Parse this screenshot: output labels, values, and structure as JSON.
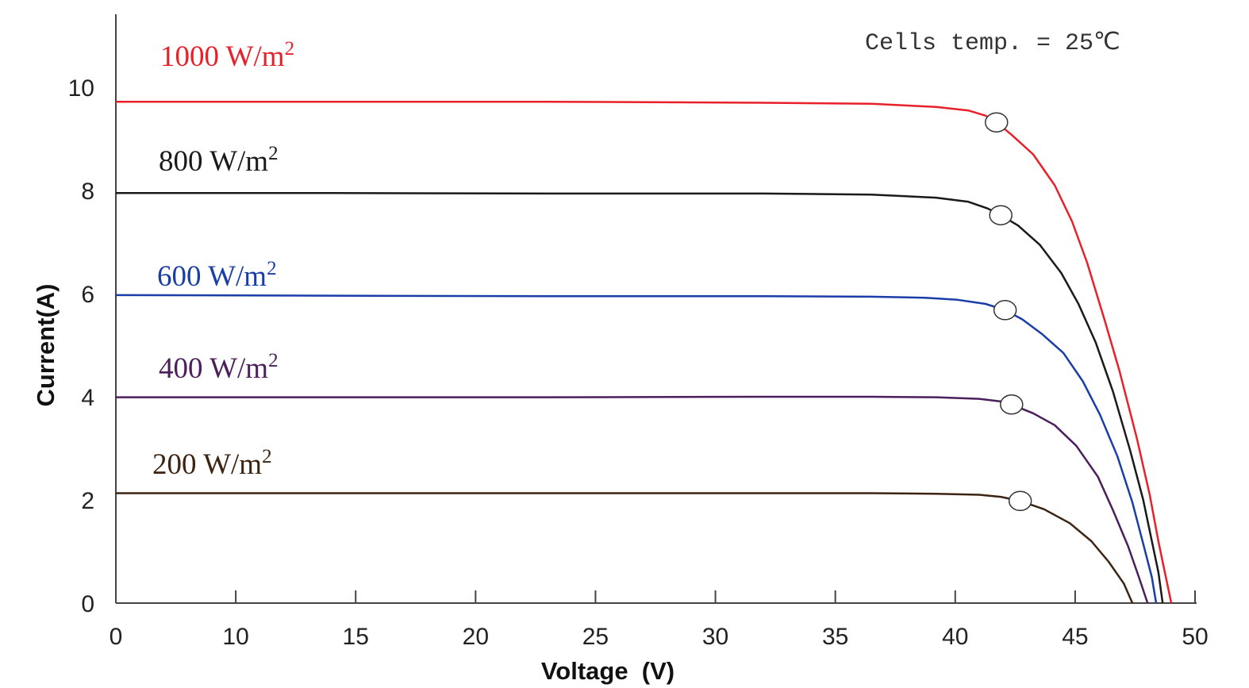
{
  "chart_data": {
    "type": "line",
    "title": "",
    "annotation": "Cells temp. = 25℃",
    "xlabel": "Voltage  (V)",
    "ylabel": "Current(A)",
    "xlim": [
      0,
      50
    ],
    "ylim": [
      0,
      11
    ],
    "x_ticks": [
      0,
      10,
      15,
      20,
      25,
      30,
      35,
      40,
      45,
      50
    ],
    "y_ticks": [
      0,
      2,
      4,
      6,
      8,
      10
    ],
    "grid": false,
    "series": [
      {
        "name": "1000 W/m²",
        "label_main": "1000 W/m",
        "label_sup": "2",
        "color": "#e8202a",
        "points": [
          [
            0,
            9.72
          ],
          [
            10,
            9.72
          ],
          [
            20,
            9.72
          ],
          [
            30,
            9.7
          ],
          [
            35,
            9.68
          ],
          [
            38,
            9.62
          ],
          [
            39.5,
            9.55
          ],
          [
            40.3,
            9.45
          ],
          [
            40.8,
            9.32
          ],
          [
            41.5,
            9.08
          ],
          [
            42.5,
            8.7
          ],
          [
            43.5,
            8.1
          ],
          [
            44.3,
            7.4
          ],
          [
            45,
            6.6
          ],
          [
            45.8,
            5.5
          ],
          [
            46.5,
            4.5
          ],
          [
            47.3,
            3.2
          ],
          [
            47.9,
            2.1
          ],
          [
            48.3,
            1.2
          ],
          [
            48.6,
            0.6
          ],
          [
            48.9,
            0.0
          ]
        ],
        "mpp": [
          40.8,
          9.32
        ]
      },
      {
        "name": "800 W/m²",
        "label_main": "800 W/m",
        "label_sup": "2",
        "color": "#1a1a1a",
        "points": [
          [
            0,
            7.95
          ],
          [
            10,
            7.95
          ],
          [
            20,
            7.94
          ],
          [
            30,
            7.94
          ],
          [
            35,
            7.92
          ],
          [
            38,
            7.86
          ],
          [
            39.5,
            7.78
          ],
          [
            40.4,
            7.65
          ],
          [
            41,
            7.52
          ],
          [
            41.8,
            7.32
          ],
          [
            42.8,
            6.95
          ],
          [
            43.8,
            6.4
          ],
          [
            44.6,
            5.8
          ],
          [
            45.4,
            5.05
          ],
          [
            46.2,
            4.1
          ],
          [
            47,
            2.95
          ],
          [
            47.6,
            2.0
          ],
          [
            48,
            1.2
          ],
          [
            48.3,
            0.6
          ],
          [
            48.5,
            0.0
          ]
        ],
        "mpp": [
          41.0,
          7.52
        ]
      },
      {
        "name": "600 W/m²",
        "label_main": "600 W/m",
        "label_sup": "2",
        "color": "#1a3ea8",
        "points": [
          [
            0,
            5.97
          ],
          [
            10,
            5.96
          ],
          [
            20,
            5.95
          ],
          [
            30,
            5.95
          ],
          [
            35,
            5.94
          ],
          [
            37.5,
            5.92
          ],
          [
            39,
            5.88
          ],
          [
            40.3,
            5.8
          ],
          [
            41.2,
            5.68
          ],
          [
            42,
            5.5
          ],
          [
            42.9,
            5.22
          ],
          [
            43.9,
            4.85
          ],
          [
            44.8,
            4.3
          ],
          [
            45.6,
            3.65
          ],
          [
            46.4,
            2.85
          ],
          [
            47.1,
            1.95
          ],
          [
            47.6,
            1.15
          ],
          [
            48,
            0.5
          ],
          [
            48.2,
            0.0
          ]
        ],
        "mpp": [
          41.2,
          5.68
        ]
      },
      {
        "name": "400 W/m²",
        "label_main": "400 W/m",
        "label_sup": "2",
        "color": "#4b1e5c",
        "points": [
          [
            0,
            3.99
          ],
          [
            10,
            3.99
          ],
          [
            20,
            3.99
          ],
          [
            30,
            4.0
          ],
          [
            35,
            4.0
          ],
          [
            38,
            3.99
          ],
          [
            40,
            3.96
          ],
          [
            41,
            3.91
          ],
          [
            41.5,
            3.85
          ],
          [
            42.5,
            3.68
          ],
          [
            43.5,
            3.45
          ],
          [
            44.5,
            3.05
          ],
          [
            45.5,
            2.45
          ],
          [
            46.2,
            1.8
          ],
          [
            46.9,
            1.1
          ],
          [
            47.4,
            0.5
          ],
          [
            47.8,
            0.0
          ]
        ],
        "mpp": [
          41.5,
          3.85
        ]
      },
      {
        "name": "200 W/m²",
        "label_main": "200 W/m",
        "label_sup": "2",
        "color": "#3d2412",
        "points": [
          [
            0,
            2.13
          ],
          [
            10,
            2.13
          ],
          [
            20,
            2.13
          ],
          [
            30,
            2.13
          ],
          [
            35,
            2.13
          ],
          [
            38,
            2.12
          ],
          [
            40,
            2.1
          ],
          [
            41,
            2.06
          ],
          [
            41.9,
            1.98
          ],
          [
            43,
            1.82
          ],
          [
            44.2,
            1.55
          ],
          [
            45.2,
            1.2
          ],
          [
            46,
            0.8
          ],
          [
            46.7,
            0.38
          ],
          [
            47.1,
            0.0
          ]
        ],
        "mpp": [
          41.9,
          1.98
        ]
      }
    ]
  }
}
